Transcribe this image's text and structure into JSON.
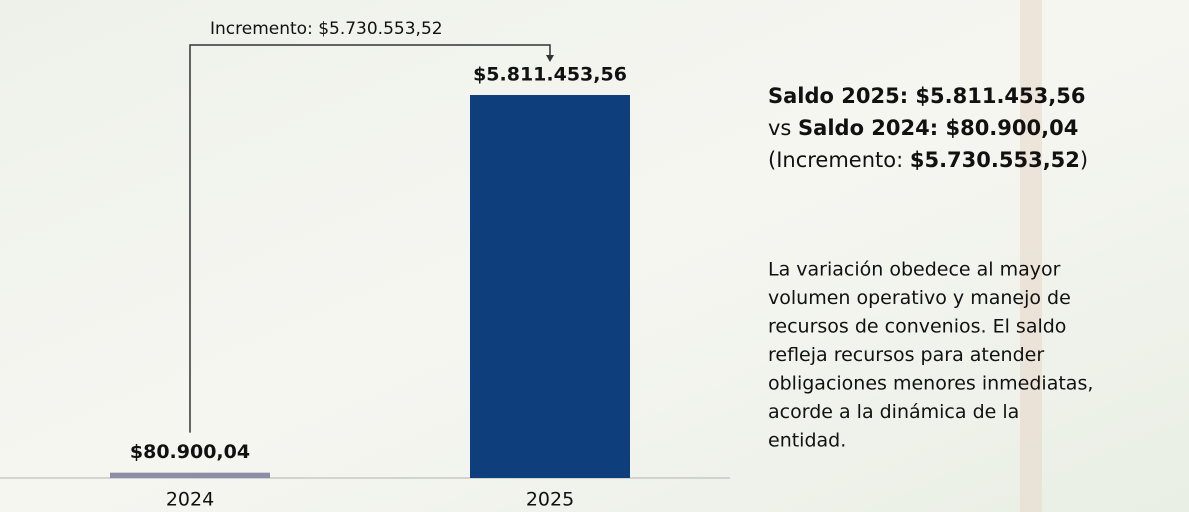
{
  "chart_data": {
    "type": "bar",
    "categories": [
      "2024",
      "2025"
    ],
    "values": [
      80900.04,
      5811453.56
    ],
    "value_labels": [
      "$80.900,04",
      "$5.811.453,56"
    ],
    "colors": [
      "#8e8ca6",
      "#0e3f7c"
    ],
    "annotation": "Incremento: $5.730.553,52",
    "summary": [
      [
        {
          "text": "Saldo 2025: $5.811.453,56",
          "bold": true
        }
      ],
      [
        {
          "text": "vs ",
          "bold": false
        },
        {
          "text": "Saldo 2024: $80.900,04",
          "bold": true
        }
      ],
      [
        {
          "text": "(Incremento: ",
          "bold": false
        },
        {
          "text": "$5.730.553,52",
          "bold": true
        },
        {
          "text": ")",
          "bold": false
        }
      ]
    ],
    "description": [
      "La variación obedece al mayor",
      "volumen operativo y manejo de",
      "recursos de convenios. El saldo",
      "refleja recursos para atender",
      "obligaciones menores inmediatas,",
      "acorde a la dinámica de la",
      "entidad."
    ]
  }
}
